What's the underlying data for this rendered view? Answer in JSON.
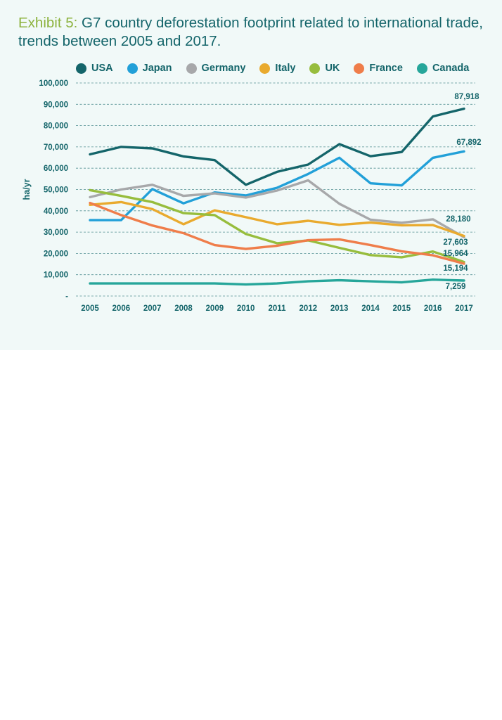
{
  "title": {
    "exhibit": "Exhibit 5:",
    "text": " G7 country deforestation footprint related to international trade, trends between 2005 and 2017."
  },
  "chart_data": {
    "type": "line",
    "x": [
      "2005",
      "2006",
      "2007",
      "2008",
      "2009",
      "2010",
      "2011",
      "2012",
      "2013",
      "2014",
      "2015",
      "2016",
      "2017"
    ],
    "ylabel": "ha/yr",
    "xlabel": "",
    "ylim": [
      0,
      100000
    ],
    "y_ticks": [
      "-",
      "10,000",
      "20,000",
      "30,000",
      "40,000",
      "50,000",
      "60,000",
      "70,000",
      "80,000",
      "90,000",
      "100,000"
    ],
    "grid": "horizontal dashed",
    "legend_placement": "top",
    "series": [
      {
        "name": "USA",
        "color": "#14656a",
        "values": [
          66500,
          70000,
          69300,
          65500,
          63800,
          52200,
          58300,
          61700,
          71300,
          65600,
          67600,
          84300,
          87918
        ]
      },
      {
        "name": "Japan",
        "color": "#22a0d8",
        "values": [
          35600,
          35600,
          50200,
          43500,
          48600,
          47200,
          50800,
          57300,
          64900,
          52900,
          51900,
          64900,
          67892
        ]
      },
      {
        "name": "Germany",
        "color": "#a7a8aa",
        "values": [
          46400,
          50000,
          52200,
          47000,
          48200,
          46200,
          49500,
          54300,
          43300,
          35800,
          34400,
          36000,
          27603
        ]
      },
      {
        "name": "Italy",
        "color": "#e9aa2e",
        "values": [
          42800,
          44100,
          40800,
          33700,
          40200,
          37000,
          33700,
          35300,
          33400,
          34500,
          33200,
          33300,
          28180
        ]
      },
      {
        "name": "UK",
        "color": "#97bd3d",
        "values": [
          49700,
          47000,
          44100,
          38900,
          38000,
          29100,
          24800,
          26100,
          22600,
          19200,
          18200,
          20900,
          15964
        ]
      },
      {
        "name": "France",
        "color": "#ef7d4a",
        "values": [
          43700,
          38000,
          33100,
          29500,
          23900,
          22100,
          23600,
          26200,
          26600,
          23900,
          21000,
          19100,
          15194
        ]
      },
      {
        "name": "Canada",
        "color": "#26a69a",
        "values": [
          5900,
          5900,
          5900,
          5900,
          5900,
          5400,
          5900,
          6900,
          7400,
          6900,
          6400,
          7700,
          7259
        ]
      }
    ],
    "end_labels": [
      "87,918",
      "67,892",
      "28,180",
      "27,603",
      "15,964",
      "15,194",
      "7,259"
    ]
  }
}
